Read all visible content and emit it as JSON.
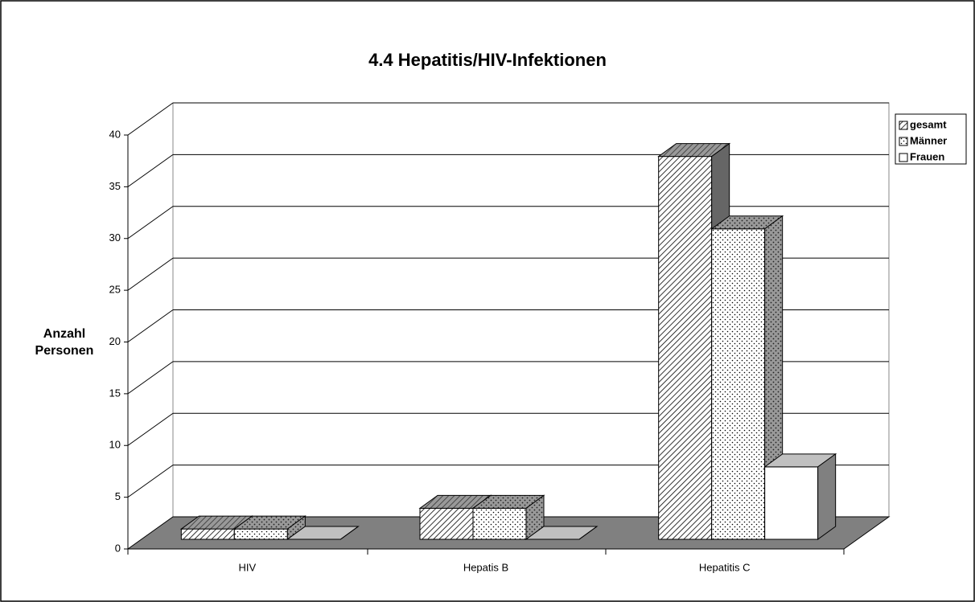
{
  "chart_data": {
    "type": "bar3d",
    "title": "4.4 Hepatitis/HIV-Infektionen",
    "y_label": "Anzahl Personen",
    "categories": [
      "HIV",
      "Hepatis B",
      "Hepatitis C"
    ],
    "series": [
      {
        "name": "gesamt",
        "pattern": "hatch",
        "values": [
          1,
          3,
          37
        ]
      },
      {
        "name": "Männer",
        "pattern": "dots",
        "values": [
          1,
          3,
          30
        ]
      },
      {
        "name": "Frauen",
        "pattern": "none",
        "values": [
          0,
          0,
          7
        ]
      }
    ],
    "ylim": [
      0,
      40
    ],
    "yticks": [
      0,
      5,
      10,
      15,
      20,
      25,
      30,
      35,
      40
    ],
    "grid": true,
    "legend": "top-right"
  }
}
